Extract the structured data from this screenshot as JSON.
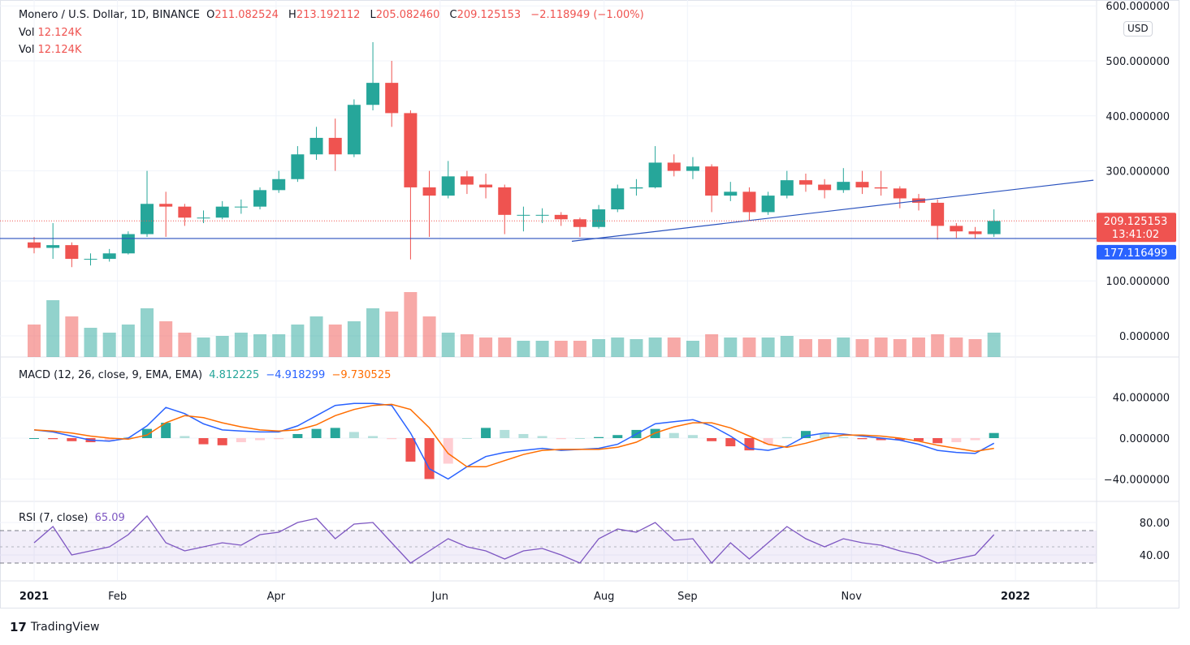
{
  "legend": {
    "title": "Monero / U.S. Dollar, 1D, BINANCE",
    "o_label": "O",
    "o": "211.082524",
    "h_label": "H",
    "h": "213.192112",
    "l_label": "L",
    "l": "205.082460",
    "c_label": "C",
    "c": "209.125153",
    "change": "−2.118949 (−1.00%)",
    "vol_label": "Vol",
    "vol": "12.124K",
    "vol2_label": "Vol",
    "vol2": "12.124K"
  },
  "macd_legend": {
    "title": "MACD (12, 26, close, 9, EMA, EMA)",
    "hist": "4.812225",
    "macd": "−4.918299",
    "signal": "−9.730525"
  },
  "rsi_legend": {
    "title": "RSI (7, close)",
    "value": "65.09"
  },
  "currency": "USD",
  "price_labels": {
    "last": "209.125153",
    "countdown": "13:41:02",
    "line": "177.116499"
  },
  "footer": {
    "brand": "TradingView"
  },
  "colors": {
    "up": "#26a69a",
    "down": "#ef5350",
    "macd": "#2962ff",
    "signal": "#ff6d00",
    "rsi": "#7e57c2",
    "line": "#2a52be"
  },
  "chart_data": [
    {
      "type": "candlestick",
      "pane": "price",
      "yticks": [
        "600.000000",
        "500.000000",
        "400.000000",
        "300.000000",
        "100.000000",
        "0.000000"
      ],
      "ytick_values": [
        600,
        500,
        400,
        300,
        100,
        0
      ],
      "xticks": [
        {
          "date": "2021-01-01",
          "label": "2021"
        },
        {
          "date": "2021-02-01",
          "label": "Feb"
        },
        {
          "date": "2021-04-01",
          "label": "Apr"
        },
        {
          "date": "2021-06-01",
          "label": "Jun"
        },
        {
          "date": "2021-08-01",
          "label": "Aug"
        },
        {
          "date": "2021-09-01",
          "label": "Sep"
        },
        {
          "date": "2021-11-01",
          "label": "Nov"
        },
        {
          "date": "2022-01-01",
          "label": "2022"
        }
      ],
      "dates": [
        "2021-01-01",
        "2021-01-08",
        "2021-01-15",
        "2021-01-22",
        "2021-01-29",
        "2021-02-05",
        "2021-02-12",
        "2021-02-19",
        "2021-02-26",
        "2021-03-05",
        "2021-03-12",
        "2021-03-19",
        "2021-03-26",
        "2021-04-02",
        "2021-04-09",
        "2021-04-16",
        "2021-04-23",
        "2021-04-30",
        "2021-05-07",
        "2021-05-14",
        "2021-05-21",
        "2021-05-28",
        "2021-06-04",
        "2021-06-11",
        "2021-06-18",
        "2021-06-25",
        "2021-07-02",
        "2021-07-09",
        "2021-07-16",
        "2021-07-23",
        "2021-07-30",
        "2021-08-06",
        "2021-08-13",
        "2021-08-20",
        "2021-08-27",
        "2021-09-03",
        "2021-09-10",
        "2021-09-17",
        "2021-09-24",
        "2021-10-01",
        "2021-10-08",
        "2021-10-15",
        "2021-10-22",
        "2021-10-29",
        "2021-11-05",
        "2021-11-12",
        "2021-11-19",
        "2021-11-26",
        "2021-12-03",
        "2021-12-10",
        "2021-12-17",
        "2021-12-24"
      ],
      "open": [
        170,
        160,
        165,
        140,
        140,
        150,
        185,
        240,
        235,
        215,
        215,
        235,
        235,
        265,
        285,
        330,
        360,
        330,
        420,
        460,
        405,
        270,
        255,
        290,
        275,
        270,
        220,
        220,
        220,
        212,
        198,
        230,
        268,
        270,
        315,
        300,
        308,
        255,
        262,
        225,
        255,
        283,
        275,
        265,
        280,
        270,
        268,
        250,
        242,
        200,
        190,
        185
      ],
      "high": [
        180,
        205,
        170,
        150,
        158,
        190,
        300,
        262,
        240,
        228,
        245,
        248,
        270,
        300,
        345,
        380,
        395,
        430,
        534,
        500,
        410,
        300,
        318,
        300,
        295,
        275,
        235,
        232,
        225,
        215,
        238,
        275,
        285,
        345,
        330,
        325,
        312,
        280,
        270,
        262,
        300,
        295,
        285,
        305,
        300,
        300,
        272,
        258,
        248,
        205,
        198,
        230
      ],
      "low": [
        150,
        140,
        125,
        128,
        135,
        148,
        180,
        180,
        200,
        205,
        212,
        222,
        230,
        260,
        280,
        320,
        300,
        325,
        410,
        380,
        139,
        180,
        250,
        258,
        250,
        185,
        190,
        205,
        200,
        180,
        195,
        225,
        255,
        268,
        290,
        285,
        225,
        245,
        210,
        220,
        250,
        262,
        250,
        260,
        258,
        255,
        232,
        228,
        175,
        178,
        176,
        180
      ],
      "close": [
        160,
        165,
        140,
        140,
        150,
        185,
        240,
        235,
        215,
        215,
        235,
        235,
        265,
        285,
        330,
        360,
        330,
        420,
        460,
        405,
        270,
        255,
        290,
        275,
        270,
        220,
        220,
        220,
        212,
        198,
        230,
        268,
        270,
        315,
        300,
        308,
        255,
        262,
        225,
        255,
        283,
        275,
        265,
        280,
        270,
        268,
        250,
        242,
        200,
        190,
        185,
        209
      ],
      "volume": [
        20,
        35,
        25,
        18,
        15,
        20,
        30,
        22,
        15,
        12,
        13,
        15,
        14,
        14,
        20,
        25,
        20,
        22,
        30,
        28,
        40,
        25,
        15,
        14,
        12,
        12,
        10,
        10,
        10,
        10,
        11,
        12,
        11,
        12,
        12,
        10,
        14,
        12,
        12,
        12,
        13,
        11,
        11,
        12,
        11,
        12,
        11,
        12,
        14,
        12,
        11,
        15
      ],
      "horizontal_line": 177.116499,
      "last_price": 209.125153,
      "trendline": [
        [
          "2021-07-20",
          172
        ],
        [
          "2022-01-30",
          283
        ]
      ]
    },
    {
      "type": "line",
      "pane": "macd",
      "yticks": [
        "40.000000",
        "0.000000",
        "−40.000000"
      ],
      "ytick_values": [
        40,
        0,
        -40
      ],
      "series": [
        {
          "name": "MACD",
          "values": [
            8,
            6,
            2,
            -2,
            -3,
            0,
            12,
            30,
            24,
            14,
            8,
            7,
            6,
            6,
            12,
            22,
            32,
            34,
            34,
            32,
            5,
            -30,
            -40,
            -28,
            -18,
            -14,
            -12,
            -10,
            -12,
            -11,
            -10,
            -6,
            4,
            14,
            16,
            18,
            12,
            2,
            -10,
            -12,
            -8,
            2,
            5,
            4,
            2,
            0,
            -2,
            -6,
            -12,
            -14,
            -15,
            -5
          ]
        },
        {
          "name": "Signal",
          "values": [
            8,
            7,
            5,
            2,
            0,
            -1,
            3,
            15,
            22,
            20,
            15,
            11,
            8,
            7,
            8,
            13,
            22,
            28,
            32,
            33,
            28,
            10,
            -15,
            -28,
            -28,
            -22,
            -16,
            -12,
            -11,
            -11,
            -11,
            -9,
            -4,
            5,
            11,
            15,
            15,
            10,
            2,
            -6,
            -9,
            -5,
            0,
            3,
            3,
            2,
            0,
            -3,
            -7,
            -10,
            -13,
            -10
          ]
        }
      ]
    },
    {
      "type": "line",
      "pane": "rsi",
      "yticks": [
        "80.00",
        "40.00"
      ],
      "ytick_values": [
        80,
        40
      ],
      "band": [
        30,
        70
      ],
      "mid": 50,
      "values": [
        55,
        75,
        40,
        45,
        50,
        65,
        88,
        55,
        45,
        50,
        55,
        52,
        65,
        68,
        80,
        85,
        60,
        78,
        80,
        55,
        30,
        45,
        60,
        50,
        45,
        35,
        45,
        48,
        40,
        30,
        60,
        72,
        68,
        80,
        58,
        60,
        30,
        55,
        35,
        55,
        75,
        60,
        50,
        60,
        55,
        52,
        45,
        40,
        30,
        35,
        40,
        65
      ]
    }
  ]
}
